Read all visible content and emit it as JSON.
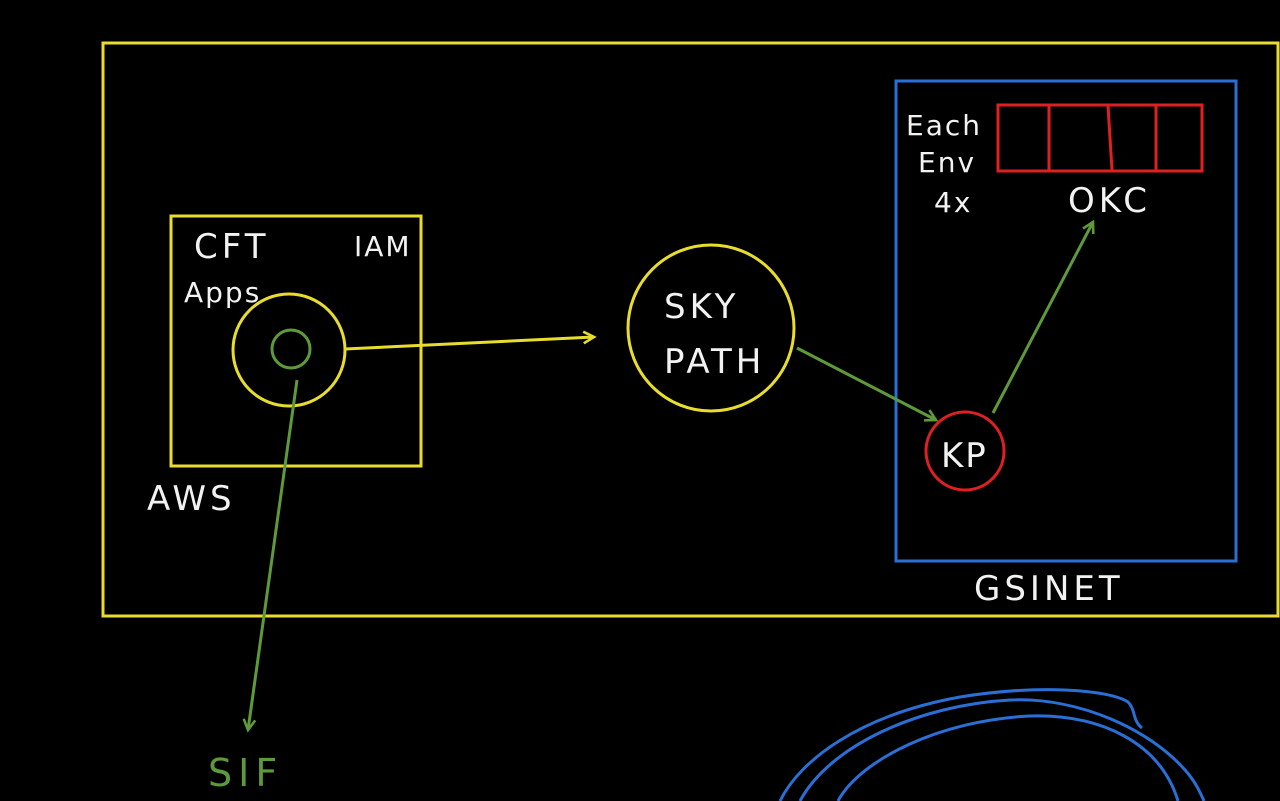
{
  "colors": {
    "background": "#000000",
    "outer_boundary": "#e8dc2c",
    "gsinet_boundary": "#2a6fd6",
    "okc_box": "#e02020",
    "kp_node": "#e02020",
    "flow_yellow": "#e8dc2c",
    "flow_green": "#5f9a3a",
    "label_text": "#f2f2f2",
    "sif_text": "#5f9a3a",
    "scribble": "#2a6fd6"
  },
  "labels": {
    "cft": "CFT",
    "apps": "Apps",
    "iam": "IAM",
    "aws": "AWS",
    "sky": "SKY",
    "path": "PATH",
    "each": "Each",
    "env": "Env",
    "count": "4x",
    "okc": "OKC",
    "kp": "KP",
    "gsinet": "GSINET",
    "sif": "SIF"
  }
}
